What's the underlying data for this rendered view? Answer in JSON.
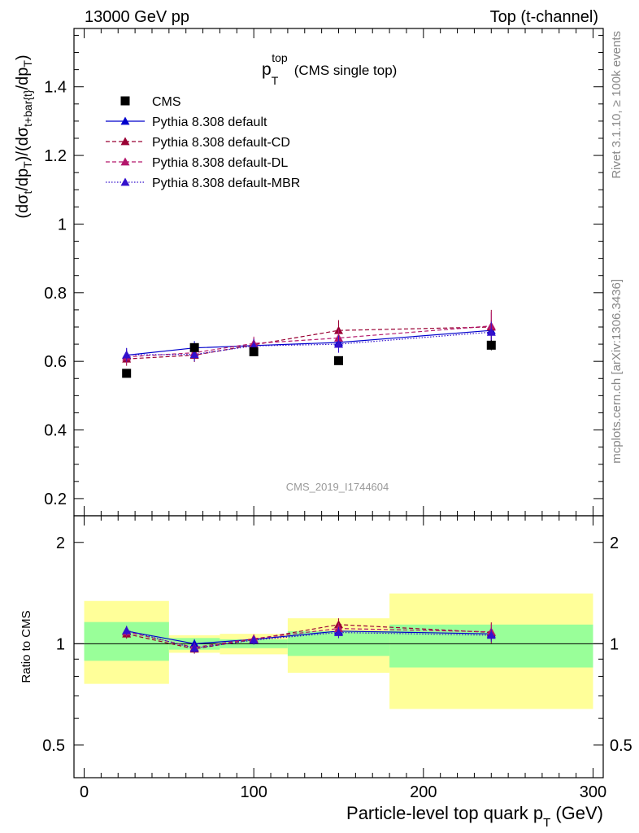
{
  "header": {
    "left": "13000 GeV pp",
    "right": "Top (t-channel)"
  },
  "side_text": {
    "rivet": "Rivet 3.1.10, ≥ 100k events",
    "source": "mcplots.cern.ch [arXiv:1306.3436]"
  },
  "analysis_label": "CMS_2019_I1744604",
  "chart_data": {
    "type": "scatter",
    "title": {
      "main": "p",
      "sup": "top",
      "sub": "T",
      "suffix": "(CMS single top)"
    },
    "xlabel": {
      "main": "Particle-level top quark p",
      "sub": "T",
      "suffix": "(GeV)"
    },
    "ylabel": "(dσt/dpT)/(dσt+bar{t}/dpT)",
    "ratio_ylabel": "Ratio to CMS",
    "xlim": [
      -6,
      306
    ],
    "ylim": [
      0.15,
      1.57
    ],
    "ratio_ylim": [
      0.4,
      2.4
    ],
    "ratio_scale": "log",
    "x_ticks": [
      0,
      100,
      200,
      300
    ],
    "y_ticks": [
      0.2,
      0.4,
      0.6,
      0.8,
      1,
      1.2,
      1.4
    ],
    "y_tick_labels": [
      "0.2",
      "0.4",
      "0.6",
      "0.8",
      "1",
      "1.2",
      "1.4"
    ],
    "ratio_ticks": [
      0.5,
      1,
      2
    ],
    "ratio_tick_labels": [
      "0.5",
      "1",
      "2"
    ],
    "legend_position": "top-left",
    "grid": false,
    "bins": [
      [
        0,
        50
      ],
      [
        50,
        80
      ],
      [
        80,
        120
      ],
      [
        120,
        180
      ],
      [
        180,
        300
      ]
    ],
    "bin_centers": [
      25,
      65,
      100,
      150,
      240
    ],
    "data": {
      "name": "CMS",
      "values": [
        0.565,
        0.64,
        0.628,
        0.602,
        0.647
      ],
      "errors": [
        0.01,
        0.012,
        0.01,
        0.012,
        0.015
      ],
      "ratio_band_stat": [
        [
          0.89,
          1.16
        ],
        [
          0.96,
          1.04
        ],
        [
          0.97,
          1.03
        ],
        [
          0.92,
          1.09
        ],
        [
          0.85,
          1.14
        ]
      ],
      "ratio_band_total": [
        [
          0.76,
          1.34
        ],
        [
          0.94,
          1.06
        ],
        [
          0.93,
          1.07
        ],
        [
          0.82,
          1.19
        ],
        [
          0.64,
          1.41
        ]
      ]
    },
    "series": [
      {
        "name": "Pythia 8.308 default",
        "style": "solid",
        "color": "#0000cc",
        "values": [
          0.618,
          0.639,
          0.646,
          0.655,
          0.69
        ],
        "errors": [
          0.02,
          0.02,
          0.02,
          0.025,
          0.03
        ],
        "ratio": [
          1.09,
          1.0,
          1.03,
          1.09,
          1.07
        ]
      },
      {
        "name": "Pythia 8.308 default-CD",
        "style": "dashed",
        "color": "#990033",
        "values": [
          0.607,
          0.618,
          0.648,
          0.69,
          0.7
        ],
        "errors": [
          0.02,
          0.02,
          0.02,
          0.03,
          0.05
        ],
        "ratio": [
          1.07,
          0.965,
          1.03,
          1.14,
          1.08
        ]
      },
      {
        "name": "Pythia 8.308 default-DL",
        "style": "dashed",
        "color": "#b3166b",
        "values": [
          0.613,
          0.625,
          0.652,
          0.668,
          0.703
        ],
        "errors": [
          0.02,
          0.02,
          0.02,
          0.025,
          0.04
        ],
        "ratio": [
          1.085,
          0.975,
          1.035,
          1.11,
          1.085
        ]
      },
      {
        "name": "Pythia 8.308 default-MBR",
        "style": "dotted",
        "color": "#3311cc",
        "values": [
          0.619,
          0.62,
          0.645,
          0.65,
          0.685
        ],
        "errors": [
          0.02,
          0.02,
          0.02,
          0.025,
          0.03
        ],
        "ratio": [
          1.095,
          0.97,
          1.025,
          1.08,
          1.06
        ]
      }
    ]
  }
}
